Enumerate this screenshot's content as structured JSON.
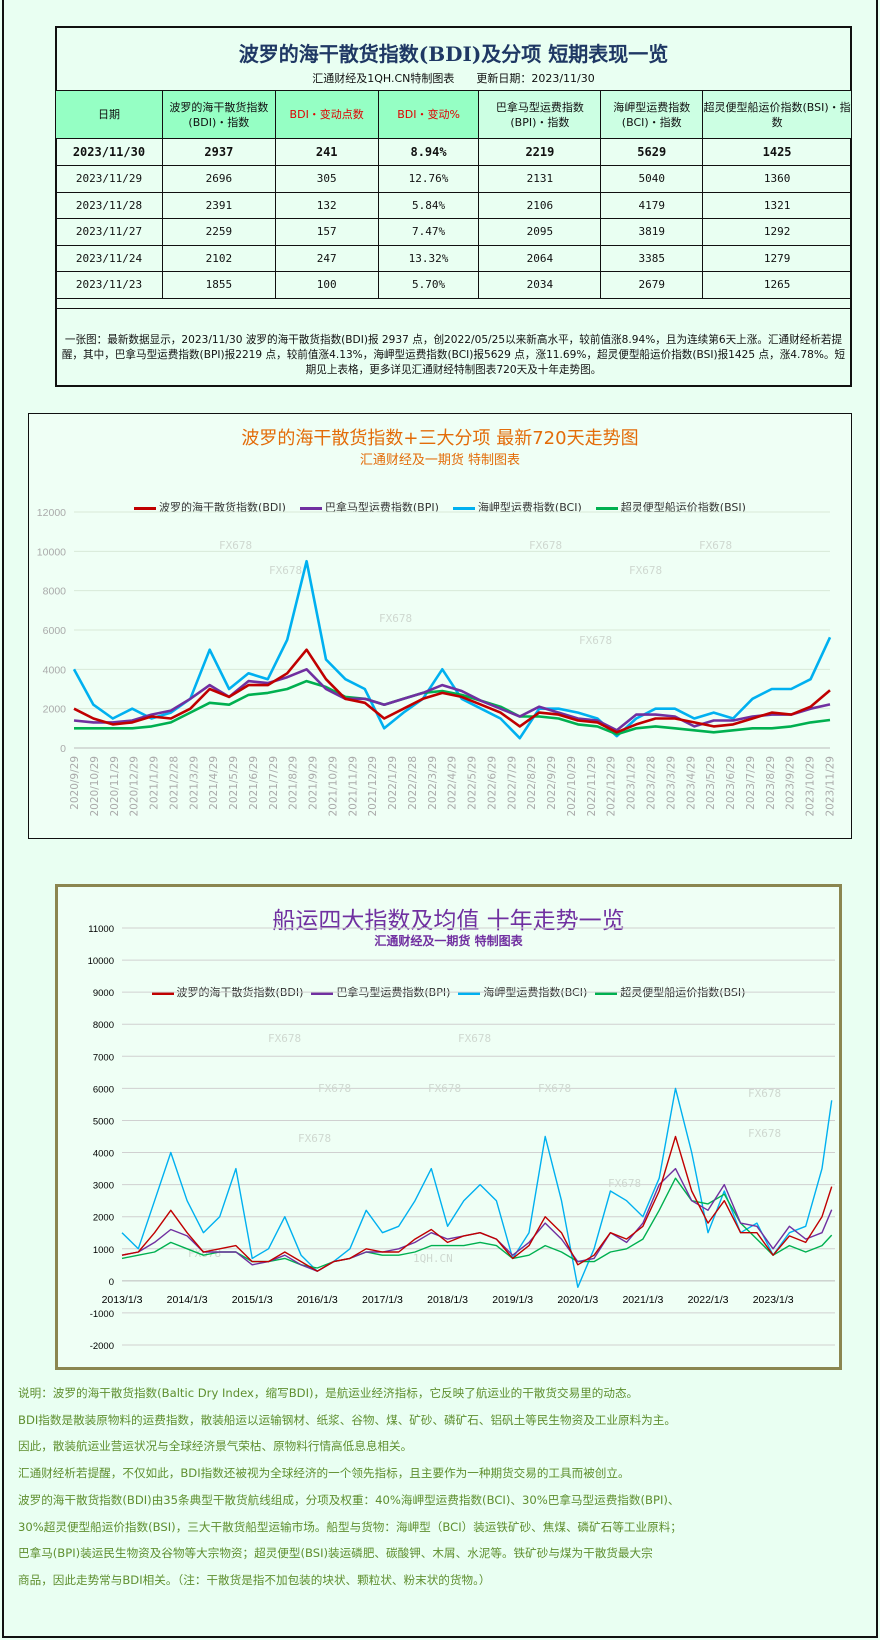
{
  "table_panel": {
    "title": "波罗的海干散货指数(BDI)及分项 短期表现一览",
    "subtitle": "汇通财经及1QH.CN特制图表　　更新日期：2023/11/30",
    "headers": [
      "日期",
      "波罗的海干散货指数(BDI)・指数",
      "BDI・变动点数",
      "BDI・变动%",
      "巴拿马型运费指数(BPI)・指数",
      "海岬型运费指数(BCI)・指数",
      "超灵便型船运价指数(BSI)・指数"
    ],
    "rows": [
      [
        "2023/11/30",
        "2937",
        "241",
        "8.94%",
        "2219",
        "5629",
        "1425"
      ],
      [
        "2023/11/29",
        "2696",
        "305",
        "12.76%",
        "2131",
        "5040",
        "1360"
      ],
      [
        "2023/11/28",
        "2391",
        "132",
        "5.84%",
        "2106",
        "4179",
        "1321"
      ],
      [
        "2023/11/27",
        "2259",
        "157",
        "7.47%",
        "2095",
        "3819",
        "1292"
      ],
      [
        "2023/11/24",
        "2102",
        "247",
        "13.32%",
        "2064",
        "3385",
        "1279"
      ],
      [
        "2023/11/23",
        "1855",
        "100",
        "5.70%",
        "2034",
        "2679",
        "1265"
      ]
    ],
    "summary": "一张图：最新数据显示，2023/11/30 波罗的海干散货指数(BDI)报 2937 点，创2022/05/25以来新高水平，较前值涨8.94%，且为连续第6天上涨。汇通财经析若提醒，其中，巴拿马型运费指数(BPI)报2219 点，较前值涨4.13%，海岬型运费指数(BCI)报5629 点，涨11.69%，超灵便型船运价指数(BSI)报1425 点，涨4.78%。短期见上表格，更多详见汇通财经特制图表720天及十年走势图。"
  },
  "colors": {
    "BDI": "#c00000",
    "BPI": "#7030a0",
    "BCI": "#00b0f0",
    "BSI": "#00b050",
    "title1": "#e36c09",
    "title2": "#7030a0",
    "notes": "#5f8f2f"
  },
  "chart_data": [
    {
      "type": "line",
      "title": "波罗的海干散货指数+三大分项  最新720天走势图",
      "subtitle": "汇通财经及一期货  特制图表",
      "ylim": [
        0,
        12000
      ],
      "yticks": [
        "0",
        "2000",
        "4000",
        "6000",
        "8000",
        "10000",
        "12000"
      ],
      "grid": true,
      "legend": "top",
      "xticks": [
        "2020/9/29",
        "2020/10/29",
        "2020/11/29",
        "2020/12/29",
        "2021/1/29",
        "2021/2/28",
        "2021/3/29",
        "2021/4/29",
        "2021/5/29",
        "2021/6/29",
        "2021/7/29",
        "2021/8/29",
        "2021/9/29",
        "2021/10/29",
        "2021/11/29",
        "2021/12/29",
        "2022/1/29",
        "2022/2/28",
        "2022/3/29",
        "2022/4/29",
        "2022/5/29",
        "2022/6/29",
        "2022/7/29",
        "2022/8/29",
        "2022/9/29",
        "2022/10/29",
        "2022/11/29",
        "2022/12/29",
        "2023/1/29",
        "2023/2/28",
        "2023/3/29",
        "2023/4/29",
        "2023/5/29",
        "2023/6/29",
        "2023/7/29",
        "2023/8/29",
        "2023/9/29",
        "2023/10/29",
        "2023/11/29"
      ],
      "watermarks": [
        "FX678",
        "FX678",
        "FX678",
        "FX678",
        "FX678",
        "FX678",
        "FX678"
      ],
      "series": [
        {
          "name": "波罗的海干散货指数(BDI)",
          "key": "BDI",
          "values": [
            2000,
            1500,
            1200,
            1300,
            1600,
            1500,
            2000,
            3000,
            2600,
            3200,
            3200,
            3800,
            5000,
            3500,
            2500,
            2300,
            1500,
            2000,
            2500,
            2800,
            2600,
            2200,
            1800,
            1100,
            1800,
            1700,
            1400,
            1300,
            800,
            1200,
            1500,
            1500,
            1300,
            1100,
            1200,
            1500,
            1800,
            1700,
            2100,
            2937
          ]
        },
        {
          "name": "巴拿马型运费指数(BPI)",
          "key": "BPI",
          "values": [
            1400,
            1300,
            1300,
            1400,
            1700,
            1900,
            2500,
            3200,
            2600,
            3400,
            3300,
            3600,
            4000,
            3000,
            2500,
            2500,
            2200,
            2500,
            2800,
            3200,
            2900,
            2400,
            2000,
            1600,
            2100,
            1800,
            1500,
            1400,
            900,
            1700,
            1700,
            1600,
            1100,
            1400,
            1400,
            1600,
            1700,
            1700,
            2000,
            2219
          ]
        },
        {
          "name": "海岬型运费指数(BCI)",
          "key": "BCI",
          "values": [
            4000,
            2200,
            1500,
            2000,
            1500,
            1800,
            2500,
            5000,
            3000,
            3800,
            3500,
            5500,
            9500,
            4500,
            3500,
            3000,
            1000,
            1800,
            2500,
            4000,
            2500,
            2000,
            1500,
            500,
            2000,
            2000,
            1800,
            1500,
            600,
            1500,
            2000,
            2000,
            1500,
            1800,
            1500,
            2500,
            3000,
            3000,
            3500,
            5629
          ]
        },
        {
          "name": "超灵便型船运价指数(BSI)",
          "key": "BSI",
          "values": [
            1000,
            1000,
            1000,
            1000,
            1100,
            1300,
            1800,
            2300,
            2200,
            2700,
            2800,
            3000,
            3400,
            3100,
            2600,
            2500,
            2200,
            2500,
            2800,
            2900,
            2700,
            2400,
            2100,
            1600,
            1600,
            1500,
            1200,
            1100,
            700,
            1000,
            1100,
            1000,
            900,
            800,
            900,
            1000,
            1000,
            1100,
            1300,
            1425
          ]
        }
      ]
    },
    {
      "type": "line",
      "title": "船运四大指数及均值 十年走势一览",
      "subtitle": "汇通财经及一期货 特制图表",
      "ylim": [
        -2000,
        11000
      ],
      "yticks": [
        "-2000",
        "-1000",
        "0",
        "1000",
        "2000",
        "3000",
        "4000",
        "5000",
        "6000",
        "7000",
        "8000",
        "9000",
        "10000",
        "11000"
      ],
      "grid": true,
      "legend": "top",
      "xticks": [
        "2013/1/3",
        "2014/1/3",
        "2015/1/3",
        "2016/1/3",
        "2017/1/3",
        "2018/1/3",
        "2019/1/3",
        "2020/1/3",
        "2021/1/3",
        "2022/1/3",
        "2023/1/3"
      ],
      "watermarks": [
        "FX678",
        "FX678",
        "FX678",
        "FX678",
        "FX678",
        "FX678",
        "FX678",
        "FX678",
        "FX678",
        "FX678",
        "1QH.CN"
      ],
      "series": [
        {
          "name": "波罗的海干散货指数(BDI)",
          "key": "BDI",
          "values": [
            800,
            900,
            1500,
            2200,
            1500,
            900,
            1000,
            1100,
            600,
            600,
            900,
            600,
            300,
            600,
            700,
            1000,
            900,
            900,
            1300,
            1600,
            1200,
            1400,
            1500,
            1300,
            700,
            1100,
            2000,
            1500,
            500,
            800,
            1500,
            1300,
            1700,
            2800,
            4500,
            2800,
            1800,
            2500,
            1500,
            1500,
            800,
            1400,
            1200,
            2000,
            2937
          ]
        },
        {
          "name": "巴拿马型运费指数(BPI)",
          "key": "BPI",
          "values": [
            800,
            900,
            1200,
            1600,
            1400,
            900,
            900,
            900,
            500,
            600,
            800,
            500,
            300,
            600,
            700,
            900,
            900,
            1000,
            1200,
            1500,
            1300,
            1400,
            1500,
            1300,
            800,
            1200,
            1800,
            1300,
            600,
            700,
            1500,
            1200,
            1800,
            3000,
            3500,
            2500,
            2200,
            3000,
            1800,
            1700,
            1000,
            1700,
            1300,
            1500,
            2219
          ]
        },
        {
          "name": "海岬型运费指数(BCI)",
          "key": "BCI",
          "values": [
            1500,
            1000,
            2500,
            4000,
            2500,
            1500,
            2000,
            3500,
            700,
            1000,
            2000,
            800,
            300,
            600,
            1000,
            2200,
            1500,
            1700,
            2500,
            3500,
            1700,
            2500,
            3000,
            2500,
            700,
            1500,
            4500,
            2500,
            -200,
            1000,
            2800,
            2500,
            2000,
            3200,
            6000,
            4000,
            1500,
            2800,
            1500,
            1800,
            800,
            1500,
            1700,
            3500,
            5629
          ]
        },
        {
          "name": "超灵便型船运价指数(BSI)",
          "key": "BSI",
          "values": [
            700,
            800,
            900,
            1200,
            1000,
            800,
            900,
            900,
            600,
            600,
            700,
            500,
            400,
            600,
            700,
            900,
            800,
            800,
            900,
            1100,
            1100,
            1100,
            1200,
            1100,
            700,
            800,
            1100,
            900,
            600,
            600,
            900,
            1000,
            1300,
            2200,
            3200,
            2500,
            2400,
            2700,
            1800,
            1300,
            800,
            1100,
            900,
            1100,
            1425
          ]
        }
      ]
    }
  ],
  "notes": [
    "说明：波罗的海干散货指数(Baltic Dry Index，缩写BDI)，是航运业经济指标，它反映了航运业的干散货交易里的动态。",
    "BDI指数是散装原物料的运费指数，散装船运以运输钢材、纸浆、谷物、煤、矿砂、磷矿石、铝矾土等民生物资及工业原料为主。",
    "因此，散装航运业营运状况与全球经济景气荣枯、原物料行情高低息息相关。",
    "汇通财经析若提醒，不仅如此，BDI指数还被视为全球经济的一个领先指标，且主要作为一种期货交易的工具而被创立。",
    "波罗的海干散货指数(BDI)由35条典型干散货航线组成，分项及权重：40%海岬型运费指数(BCI)、30%巴拿马型运费指数(BPI)、",
    "30%超灵便型船运价指数(BSI)，三大干散货船型运输市场。船型与货物：海岬型（BCI）装运铁矿砂、焦煤、磷矿石等工业原料；",
    "巴拿马(BPI)装运民生物资及谷物等大宗物资；超灵便型(BSI)装运磷肥、碳酸钾、木屑、水泥等。铁矿砂与煤为干散货最大宗",
    "商品，因此走势常与BDI相关。（注：干散货是指不加包装的块状、颗粒状、粉末状的货物。）"
  ]
}
